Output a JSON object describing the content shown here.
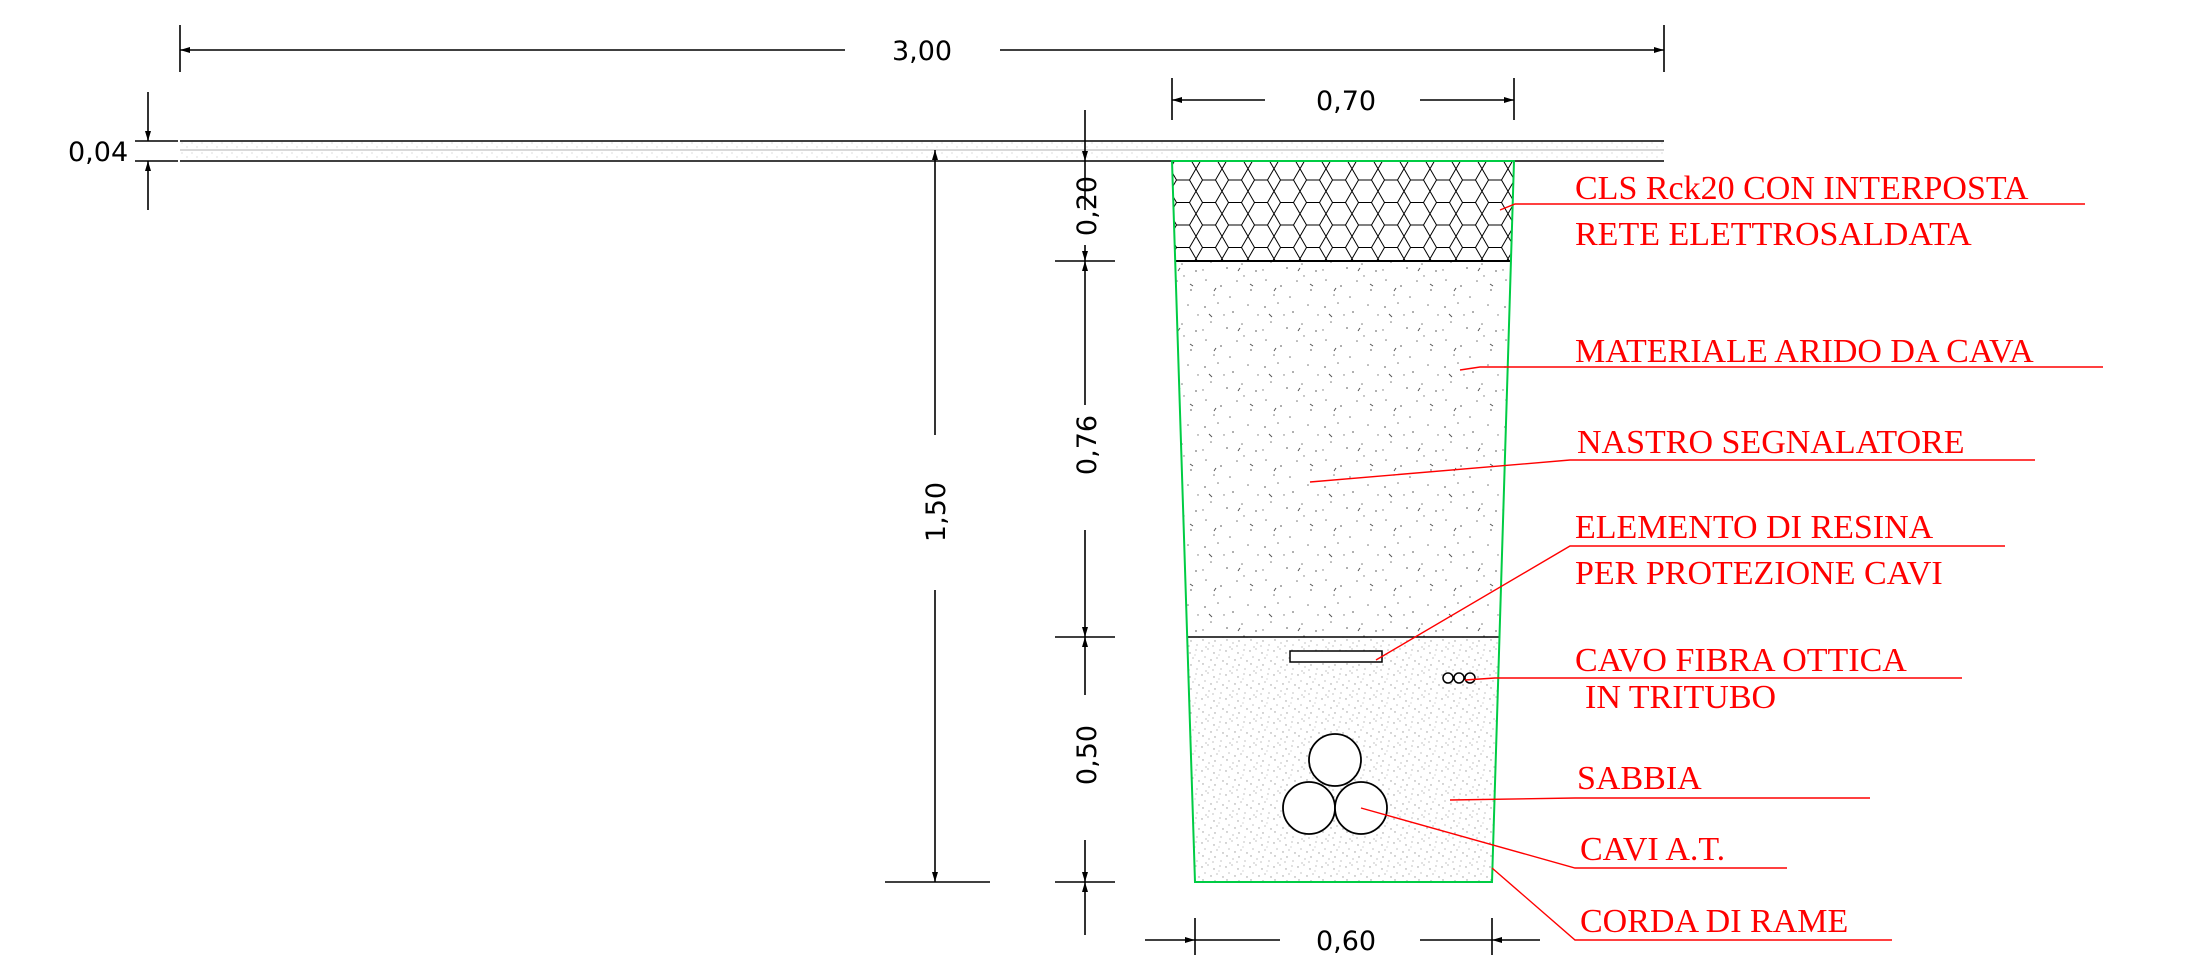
{
  "dimensions": {
    "total_width": "3,00",
    "trench_top_width": "0,70",
    "trench_bottom_width": "0,60",
    "pavement_thickness": "0,04",
    "concrete_layer": "0,20",
    "aggregate_layer": "0,76",
    "sand_layer": "0,50",
    "total_depth": "1,50"
  },
  "labels": {
    "concrete_line1": "CLS Rck20 CON INTERPOSTA",
    "concrete_line2": "RETE ELETTROSALDATA",
    "aggregate": "MATERIALE ARIDO DA CAVA",
    "warning_tape": "NASTRO SEGNALATORE",
    "resin_line1": "ELEMENTO DI RESINA",
    "resin_line2": "PER PROTEZIONE CAVI",
    "fiber_line1": "CAVO FIBRA OTTICA",
    "fiber_line2": "IN TRITUBO",
    "sand": "SABBIA",
    "hv_cables": "CAVI  A.T.",
    "copper_rope": "CORDA DI RAME"
  },
  "colors": {
    "label_text": "#ff0000",
    "trench_outline": "#00cc44",
    "linework": "#000000"
  }
}
